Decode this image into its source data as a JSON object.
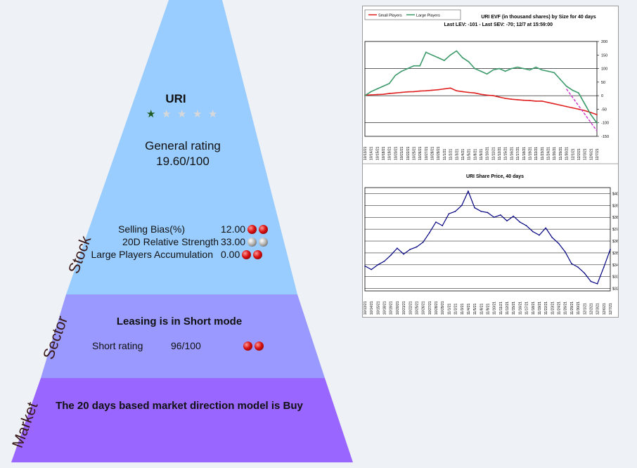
{
  "stock": {
    "ticker": "URI",
    "rating_stars_filled": 1,
    "rating_stars_total": 5,
    "general_rating_label": "General rating",
    "general_rating_value": "19.60/100",
    "metrics": [
      {
        "label": "Selling Bias(%)",
        "value": "12.00",
        "balls": [
          "red",
          "red"
        ]
      },
      {
        "label": "20D Relative Strength",
        "value": "33.00",
        "balls": [
          "gray",
          "gray"
        ]
      },
      {
        "label": "Large Players Accumulation",
        "value": "0.00",
        "balls": [
          "red",
          "red"
        ]
      }
    ]
  },
  "sector": {
    "headline": "Leasing is in Short mode",
    "short_rating_label": "Short rating",
    "short_rating_value": "96/100",
    "balls": [
      "red",
      "red"
    ]
  },
  "market": {
    "headline": "The 20 days based market direction model is Buy"
  },
  "side_labels": {
    "stock": "Stock",
    "sector": "Sector",
    "market": "Market"
  },
  "colors": {
    "stock_tier": "#99ccff",
    "sector_tier": "#9999ff",
    "market_tier": "#9966ff",
    "small_players": "#e02020",
    "large_players": "#3c9a6a",
    "share_price": "#000080",
    "trend": "#cc33cc"
  },
  "chart_data": [
    {
      "type": "line",
      "title": "URI EVF (in thousand shares) by Size for 40 days",
      "subtitle": "Last LEV: -101 - Last SEV: -70; 12/7 at 15:59:00",
      "legend": [
        "Small Players",
        "Large Players"
      ],
      "legend_position": "top-left",
      "ylim": [
        -150,
        200
      ],
      "yticks": [
        200,
        150,
        100,
        50,
        0,
        -50,
        -100,
        -150
      ],
      "x_dates": [
        "10/13/21",
        "10/14/21",
        "10/15/21",
        "10/18/21",
        "10/19/21",
        "10/20/21",
        "10/21/21",
        "10/22/21",
        "10/25/21",
        "10/26/21",
        "10/27/21",
        "10/28/21",
        "10/29/21",
        "11/1/21",
        "11/2/21",
        "11/3/21",
        "11/4/21",
        "11/5/21",
        "11/8/21",
        "11/9/21",
        "11/10/21",
        "11/11/21",
        "11/12/21",
        "11/15/21",
        "11/16/21",
        "11/17/21",
        "11/18/21",
        "11/19/21",
        "11/22/21",
        "11/23/21",
        "11/24/21",
        "11/26/21",
        "11/29/21",
        "11/30/21",
        "12/1/21",
        "12/2/21",
        "12/3/21",
        "12/6/21",
        "12/7/21"
      ],
      "series": [
        {
          "name": "Small Players",
          "values": [
            2,
            3,
            4,
            5,
            8,
            10,
            12,
            14,
            15,
            17,
            18,
            20,
            22,
            25,
            28,
            18,
            15,
            12,
            10,
            5,
            2,
            0,
            -5,
            -10,
            -13,
            -15,
            -17,
            -18,
            -20,
            -20,
            -25,
            -30,
            -35,
            -40,
            -45,
            -50,
            -55,
            -62,
            -70
          ]
        },
        {
          "name": "Large Players",
          "values": [
            0,
            15,
            25,
            35,
            45,
            75,
            90,
            100,
            110,
            110,
            160,
            150,
            140,
            130,
            150,
            165,
            140,
            125,
            100,
            90,
            80,
            95,
            100,
            90,
            100,
            105,
            100,
            95,
            105,
            95,
            90,
            85,
            60,
            35,
            20,
            10,
            -30,
            -70,
            -101
          ]
        }
      ],
      "trend_line": {
        "from": [
          33,
          25
        ],
        "to": [
          38,
          -130
        ]
      }
    },
    {
      "type": "line",
      "title": "URI Share Price, 40 days",
      "ylim": [
        325,
        412
      ],
      "yticks": [
        "$407.0",
        "$397.0",
        "$387.0",
        "$377.0",
        "$367.0",
        "$357.0",
        "$347.0",
        "$337.0",
        "$327.0"
      ],
      "x_dates": [
        "10/13/21",
        "10/14/21",
        "10/15/21",
        "10/18/21",
        "10/19/21",
        "10/20/21",
        "10/21/21",
        "10/22/21",
        "10/25/21",
        "10/26/21",
        "10/27/21",
        "10/28/21",
        "10/29/21",
        "11/1/21",
        "11/2/21",
        "11/3/21",
        "11/4/21",
        "11/5/21",
        "11/8/21",
        "11/9/21",
        "11/10/21",
        "11/11/21",
        "11/12/21",
        "11/15/21",
        "11/16/21",
        "11/17/21",
        "11/18/21",
        "11/19/21",
        "11/22/21",
        "11/23/21",
        "11/24/21",
        "11/26/21",
        "11/29/21",
        "11/30/21",
        "12/1/21",
        "12/2/21",
        "12/3/21",
        "12/6/21",
        "12/7/21"
      ],
      "series": [
        {
          "name": "URI",
          "values": [
            346,
            343,
            347,
            350,
            355,
            361,
            356,
            360,
            362,
            366,
            374,
            383,
            380,
            390,
            392,
            397,
            409,
            395,
            392,
            391,
            387,
            389,
            384,
            388,
            383,
            380,
            375,
            372,
            378,
            370,
            365,
            358,
            348,
            345,
            340,
            333,
            331,
            345,
            360
          ]
        }
      ]
    }
  ]
}
